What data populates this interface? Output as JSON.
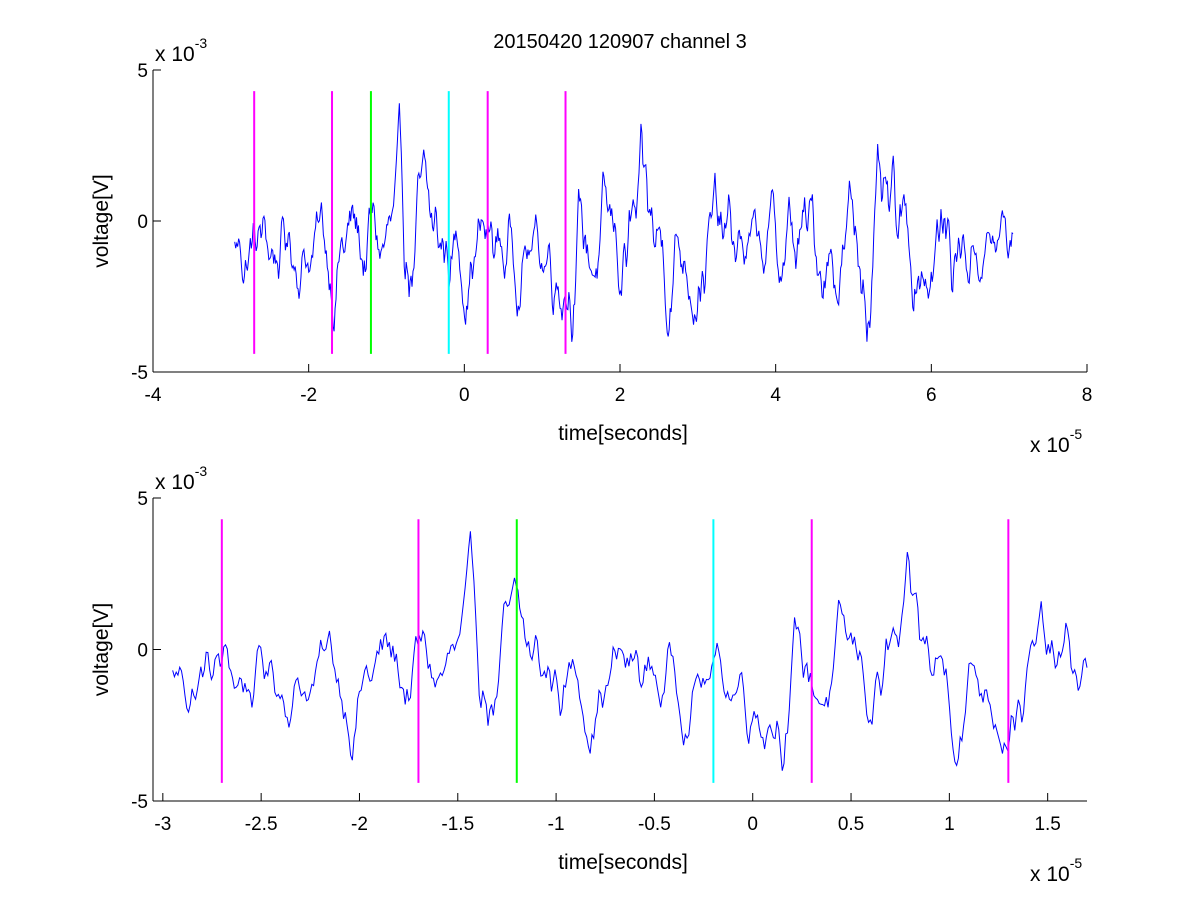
{
  "title": "20150420 120907 channel 3",
  "colors": {
    "signal": "#0000ff",
    "markers": {
      "magenta": "#ff00ff",
      "green": "#00ff00",
      "cyan": "#00ffff"
    },
    "axis": "#000000",
    "background": "#ffffff"
  },
  "chart_data": [
    {
      "type": "line",
      "title": "20150420 120907 channel 3",
      "xlabel": "time[seconds]",
      "ylabel": "voltage[V]",
      "xlim": [
        -4,
        8
      ],
      "ylim": [
        -5,
        5
      ],
      "x_exponent_label": {
        "base": "x 10",
        "exp": "-5"
      },
      "y_exponent_label": {
        "base": "x 10",
        "exp": "-3"
      },
      "xticks": [
        -4,
        -2,
        0,
        2,
        4,
        6,
        8
      ],
      "xtick_labels": [
        "-4",
        "-2",
        "0",
        "2",
        "4",
        "6",
        "8"
      ],
      "yticks": [
        -5,
        0,
        5
      ],
      "ytick_labels": [
        "-5",
        "0",
        "5"
      ],
      "grid": false,
      "series": [
        {
          "color": "#0000ff",
          "x_range": [
            -2.95,
            7.05
          ],
          "y_range": [
            -4.0,
            3.9
          ],
          "num_points": 800
        }
      ],
      "markers": [
        {
          "x": -2.7,
          "color": "#ff00ff",
          "y_range": [
            -4.4,
            4.3
          ]
        },
        {
          "x": -1.7,
          "color": "#ff00ff",
          "y_range": [
            -4.4,
            4.3
          ]
        },
        {
          "x": -1.2,
          "color": "#00ff00",
          "y_range": [
            -4.4,
            4.3
          ]
        },
        {
          "x": -0.2,
          "color": "#00ffff",
          "y_range": [
            -4.4,
            4.3
          ]
        },
        {
          "x": 0.3,
          "color": "#ff00ff",
          "y_range": [
            -4.4,
            4.3
          ]
        },
        {
          "x": 1.3,
          "color": "#ff00ff",
          "y_range": [
            -4.4,
            4.3
          ]
        }
      ]
    },
    {
      "type": "line",
      "title": "",
      "xlabel": "time[seconds]",
      "ylabel": "voltage[V]",
      "xlim": [
        -3.05,
        1.7
      ],
      "ylim": [
        -5,
        5
      ],
      "x_exponent_label": {
        "base": "x 10",
        "exp": "-5"
      },
      "y_exponent_label": {
        "base": "x 10",
        "exp": "-3"
      },
      "xticks": [
        -3,
        -2.5,
        -2,
        -1.5,
        -1,
        -0.5,
        0,
        0.5,
        1,
        1.5
      ],
      "xtick_labels": [
        "-3",
        "-2.5",
        "-2",
        "-1.5",
        "-1",
        "-0.5",
        "0",
        "0.5",
        "1",
        "1.5"
      ],
      "yticks": [
        -5,
        0,
        5
      ],
      "ytick_labels": [
        "-5",
        "0",
        "5"
      ],
      "grid": false,
      "series": [
        {
          "color": "#0000ff",
          "x_range": [
            -2.95,
            1.7
          ],
          "y_range": [
            -4.0,
            3.9
          ],
          "num_points": 520
        }
      ],
      "markers": [
        {
          "x": -2.7,
          "color": "#ff00ff",
          "y_range": [
            -4.4,
            4.3
          ]
        },
        {
          "x": -1.7,
          "color": "#ff00ff",
          "y_range": [
            -4.4,
            4.3
          ]
        },
        {
          "x": -1.2,
          "color": "#00ff00",
          "y_range": [
            -4.4,
            4.3
          ]
        },
        {
          "x": -0.2,
          "color": "#00ffff",
          "y_range": [
            -4.4,
            4.3
          ]
        },
        {
          "x": 0.3,
          "color": "#ff00ff",
          "y_range": [
            -4.4,
            4.3
          ]
        },
        {
          "x": 1.3,
          "color": "#ff00ff",
          "y_range": [
            -4.4,
            4.3
          ]
        }
      ]
    }
  ]
}
